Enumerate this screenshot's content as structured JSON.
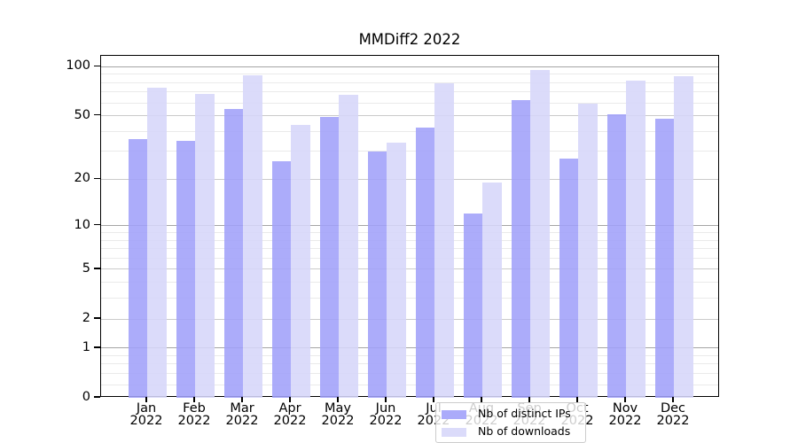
{
  "title": "MMDiff2 2022",
  "y_axis": {
    "tick_labels": [
      "100",
      "50",
      "20",
      "10",
      "5",
      "2",
      "1",
      "0"
    ],
    "tick_values": [
      100,
      50,
      20,
      10,
      5,
      2,
      1,
      0
    ],
    "minor_tick_values": [
      0.2,
      0.4,
      0.6,
      0.8,
      3,
      4,
      6,
      7,
      8,
      9,
      30,
      40,
      60,
      70,
      80,
      90
    ],
    "decade_values": [
      1,
      10,
      100
    ]
  },
  "x_axis": {
    "months": [
      "Jan",
      "Feb",
      "Mar",
      "Apr",
      "May",
      "Jun",
      "Jul",
      "Aug",
      "Sep",
      "Oct",
      "Nov",
      "Dec"
    ],
    "year": "2022"
  },
  "legend": {
    "items": [
      {
        "label": "Nb of distinct IPs",
        "color": "#ababfa"
      },
      {
        "label": "Nb of downloads",
        "color": "#dbdbfa"
      }
    ]
  },
  "colors": {
    "distinct_ips": "#ababfa",
    "downloads": "#dbdbfa",
    "grid_decade": "#a5a5a5",
    "grid_major": "#cacaca",
    "grid_minor": "#eaeaea",
    "axis": "#000000",
    "legend_border": "#cccccc"
  },
  "chart_data": {
    "type": "bar",
    "title": "MMDiff2 2022",
    "categories": [
      "Jan 2022",
      "Feb 2022",
      "Mar 2022",
      "Apr 2022",
      "May 2022",
      "Jun 2022",
      "Jul 2022",
      "Aug 2022",
      "Sep 2022",
      "Oct 2022",
      "Nov 2022",
      "Dec 2022"
    ],
    "series": [
      {
        "name": "Nb of distinct IPs",
        "values": [
          36,
          35,
          55,
          26,
          49,
          30,
          42,
          12,
          62,
          27,
          51,
          48
        ]
      },
      {
        "name": "Nb of downloads",
        "values": [
          74,
          68,
          89,
          44,
          67,
          34,
          79,
          19,
          95,
          59,
          82,
          87
        ]
      }
    ],
    "xlabel": "",
    "ylabel": "",
    "yscale": "log1p",
    "ylim": [
      0,
      117
    ],
    "yticks": [
      0,
      1,
      2,
      5,
      10,
      20,
      50,
      100
    ],
    "grid": true,
    "legend_position": "lower center inside plot"
  }
}
